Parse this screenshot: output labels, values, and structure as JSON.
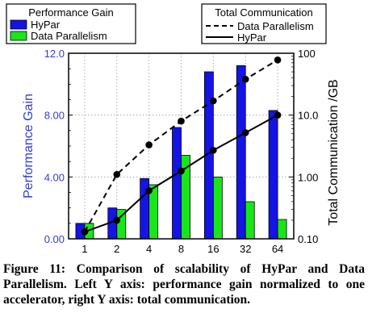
{
  "chart_data": {
    "type": "bar",
    "categories": [
      "1",
      "2",
      "4",
      "8",
      "16",
      "32",
      "64"
    ],
    "left_axis": {
      "label": "Performance Gain",
      "range": [
        0,
        12
      ],
      "ticks": [
        "0.00",
        "4.00",
        "8.00",
        "12.0"
      ],
      "tick_values": [
        0,
        4,
        8,
        12
      ],
      "color": "#2f3fd0"
    },
    "right_axis": {
      "label": "Total Communication /GB",
      "scale": "log",
      "range": [
        0.1,
        100
      ],
      "ticks": [
        "0.10",
        "1.00",
        "10.0",
        "100"
      ],
      "tick_values": [
        0.1,
        1,
        10,
        100
      ]
    },
    "bar_series": [
      {
        "name": "HyPar",
        "color": "#1414e6",
        "values": [
          1.0,
          2.0,
          3.9,
          7.2,
          10.8,
          11.2,
          8.3
        ]
      },
      {
        "name": "Data Parallelism",
        "color": "#19e619",
        "values": [
          1.0,
          1.9,
          3.5,
          5.4,
          4.0,
          2.4,
          1.25
        ]
      }
    ],
    "line_series": [
      {
        "name": "Data Parallelism",
        "style": "dashed",
        "values": [
          0.13,
          1.1,
          3.3,
          8.0,
          17.0,
          38.0,
          78.0
        ]
      },
      {
        "name": "HyPar",
        "style": "solid",
        "values": [
          0.13,
          0.2,
          0.6,
          1.25,
          2.7,
          5.2,
          10.0
        ]
      }
    ],
    "legend_left": {
      "title": "Performance Gain",
      "entries": [
        "HyPar",
        "Data Parallelism"
      ]
    },
    "legend_right": {
      "title": "Total Communication",
      "entries": [
        "Data Parallelism",
        "HyPar"
      ]
    },
    "grid": true
  },
  "caption": "Figure 11: Comparison of scalability of HyPar and Data Parallelism. Left Y axis: performance gain normalized to one accelerator, right Y axis: total communication.",
  "colors": {
    "bar_outline": "#000000",
    "grid": "#9a9a9a"
  }
}
